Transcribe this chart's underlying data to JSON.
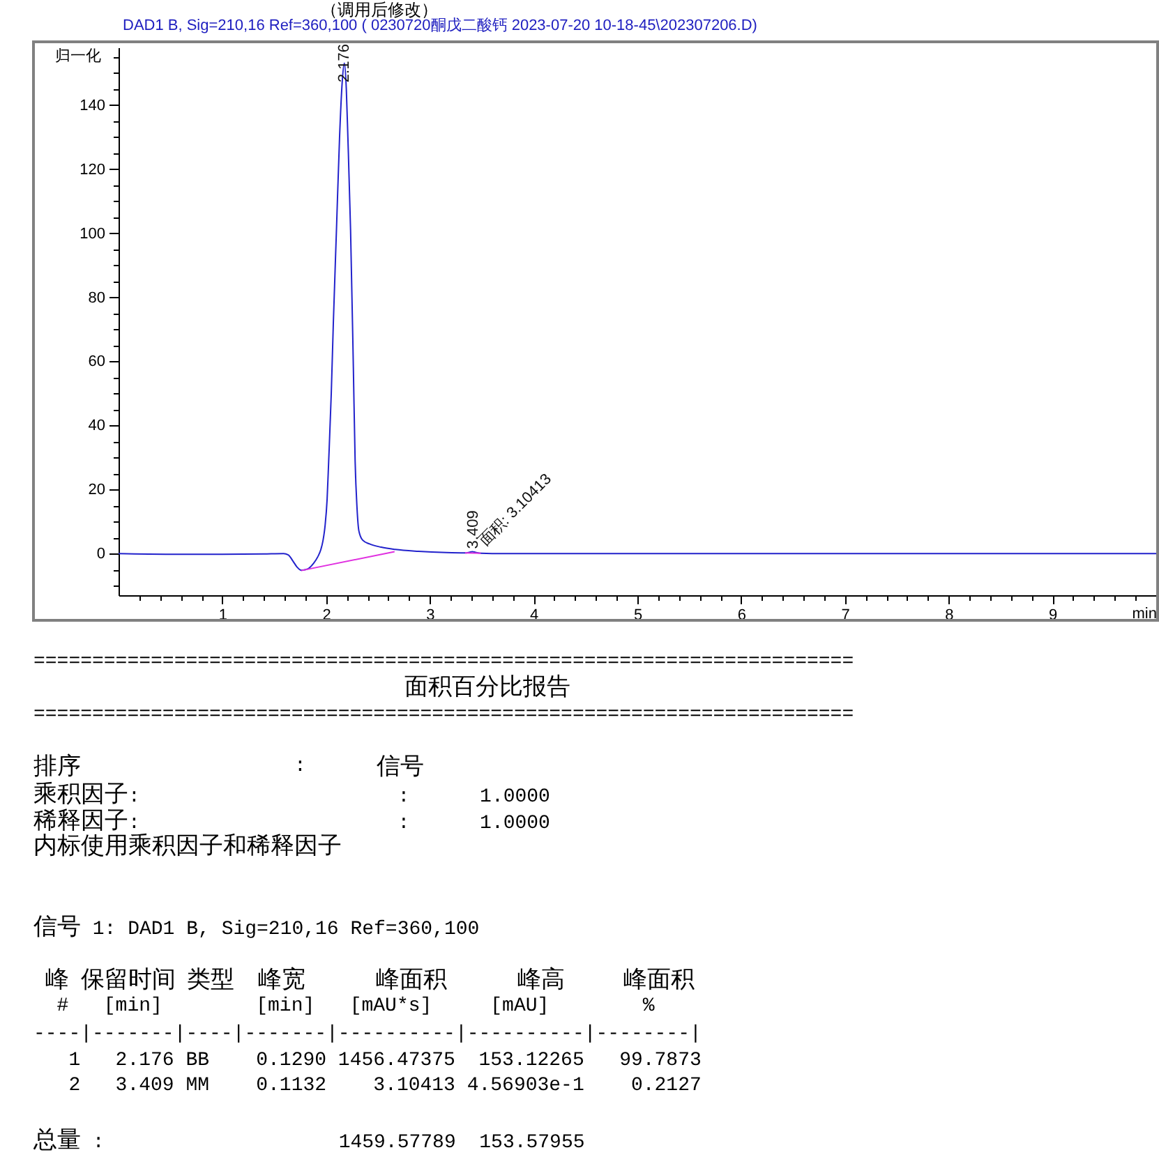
{
  "chart_data": {
    "type": "line",
    "title": "DAD1 B, Sig=210,16 Ref=360,100 ( 0230720酮戊二酸钙 2023-07-20 10-18-45\\202307206.D)",
    "xlabel": "min",
    "ylabel": "归一化",
    "xlim": [
      0,
      10
    ],
    "ylim": [
      -13,
      158
    ],
    "xticks": [
      {
        "value": 0.2,
        "label": null
      },
      {
        "value": 0.4,
        "label": null
      },
      {
        "value": 0.6,
        "label": null
      },
      {
        "value": 0.8,
        "label": null
      },
      1,
      {
        "value": 1.2,
        "label": null
      },
      {
        "value": 1.4,
        "label": null
      },
      {
        "value": 1.6,
        "label": null
      },
      {
        "value": 1.8,
        "label": null
      },
      2,
      {
        "value": 2.2,
        "label": null
      },
      {
        "value": 2.4,
        "label": null
      },
      {
        "value": 2.6,
        "label": null
      },
      {
        "value": 2.8,
        "label": null
      },
      3,
      {
        "value": 3.2,
        "label": null
      },
      {
        "value": 3.4,
        "label": null
      },
      {
        "value": 3.6,
        "label": null
      },
      {
        "value": 3.8,
        "label": null
      },
      4,
      {
        "value": 4.2,
        "label": null
      },
      {
        "value": 4.4,
        "label": null
      },
      {
        "value": 4.6,
        "label": null
      },
      {
        "value": 4.8,
        "label": null
      },
      5,
      {
        "value": 5.2,
        "label": null
      },
      {
        "value": 5.4,
        "label": null
      },
      {
        "value": 5.6,
        "label": null
      },
      {
        "value": 5.8,
        "label": null
      },
      6,
      {
        "value": 6.2,
        "label": null
      },
      {
        "value": 6.4,
        "label": null
      },
      {
        "value": 6.6,
        "label": null
      },
      {
        "value": 6.8,
        "label": null
      },
      7,
      {
        "value": 7.2,
        "label": null
      },
      {
        "value": 7.4,
        "label": null
      },
      {
        "value": 7.6,
        "label": null
      },
      {
        "value": 7.8,
        "label": null
      },
      8,
      {
        "value": 8.2,
        "label": null
      },
      {
        "value": 8.4,
        "label": null
      },
      {
        "value": 8.6,
        "label": null
      },
      {
        "value": 8.8,
        "label": null
      },
      9,
      {
        "value": 9.2,
        "label": null
      },
      {
        "value": 9.4,
        "label": null
      },
      {
        "value": 9.6,
        "label": null
      },
      {
        "value": 9.8,
        "label": null
      }
    ],
    "yticks": [
      {
        "value": -10,
        "label": null
      },
      {
        "value": -5,
        "label": null
      },
      0,
      {
        "value": 5,
        "label": null
      },
      {
        "value": 10,
        "label": null
      },
      {
        "value": 15,
        "label": null
      },
      20,
      {
        "value": 25,
        "label": null
      },
      {
        "value": 30,
        "label": null
      },
      {
        "value": 35,
        "label": null
      },
      40,
      {
        "value": 45,
        "label": null
      },
      {
        "value": 50,
        "label": null
      },
      {
        "value": 55,
        "label": null
      },
      60,
      {
        "value": 65,
        "label": null
      },
      {
        "value": 70,
        "label": null
      },
      {
        "value": 75,
        "label": null
      },
      80,
      {
        "value": 85,
        "label": null
      },
      {
        "value": 90,
        "label": null
      },
      {
        "value": 95,
        "label": null
      },
      100,
      {
        "value": 105,
        "label": null
      },
      {
        "value": 110,
        "label": null
      },
      {
        "value": 115,
        "label": null
      },
      120,
      {
        "value": 125,
        "label": null
      },
      {
        "value": 130,
        "label": null
      },
      {
        "value": 135,
        "label": null
      },
      140,
      {
        "value": 145,
        "label": null
      },
      {
        "value": 150,
        "label": null
      },
      {
        "value": 155,
        "label": null
      }
    ],
    "series": [
      {
        "type": "line",
        "color": "#2222cc",
        "x": [
          0,
          0.5,
          1.0,
          1.4,
          1.59,
          1.635,
          1.68,
          1.72,
          1.76,
          1.815,
          1.88,
          1.92,
          1.95,
          1.97,
          1.99,
          2.01,
          2.025,
          2.05,
          2.07,
          2.1,
          2.13,
          2.155,
          2.176,
          2.195,
          2.21,
          2.236,
          2.263,
          2.28,
          2.298,
          2.316,
          2.352,
          2.419,
          2.531,
          2.666,
          2.89,
          3.159,
          3.338,
          3.38,
          3.409,
          3.44,
          3.49,
          3.6,
          4,
          5,
          6,
          7,
          8,
          9,
          10
        ],
        "values": [
          0,
          -0.2,
          -0.2,
          -0.1,
          0,
          -0.4,
          -2.3,
          -4.2,
          -5.2,
          -4.9,
          -3.0,
          -1.0,
          1.3,
          4.0,
          8.6,
          17,
          28.8,
          50,
          72,
          101,
          130,
          147,
          153.1,
          145,
          130,
          101,
          57.8,
          28.8,
          14.3,
          7.1,
          4.2,
          3.0,
          2.0,
          1.3,
          0.7,
          0.3,
          0.2,
          0.4,
          0.6,
          0.4,
          0.1,
          0,
          0,
          0,
          0,
          0,
          0,
          0,
          0
        ]
      },
      {
        "type": "line",
        "color": "#e030e0",
        "x": [
          1.76,
          2.66
        ],
        "values": [
          -5.3,
          0.6
        ]
      },
      {
        "type": "line",
        "color": "#e030e0",
        "x": [
          3.34,
          3.49
        ],
        "values": [
          0.2,
          0.1
        ]
      }
    ],
    "annotations": [
      "（调用后修改）",
      "2.176",
      "3.409",
      "面积: 3.10413",
      "======================================================================",
      "面积百分比报告",
      "======================================================================",
      "排序",
      ":",
      "信号",
      "乘积因子:                      :      1.0000",
      "稀释因子:                      :      1.0000",
      "内标使用乘积因子和稀释因子",
      "信号 1: DAD1 B, Sig=210,16 Ref=360,100",
      " 峰 保留时间 类型  峰宽      峰面积      峰高     峰面积",
      "  #   [min]        [min]   [mAU*s]     [mAU]        %",
      "----|-------|----|-------|----------|----------|--------|",
      "   1   2.176 BB    0.1290 1456.47375  153.12265   99.7873",
      "   2   3.409 MM    0.1132    3.10413 4.56903e-1    0.2127",
      "总量 :                    1459.57789  153.57955"
    ]
  }
}
